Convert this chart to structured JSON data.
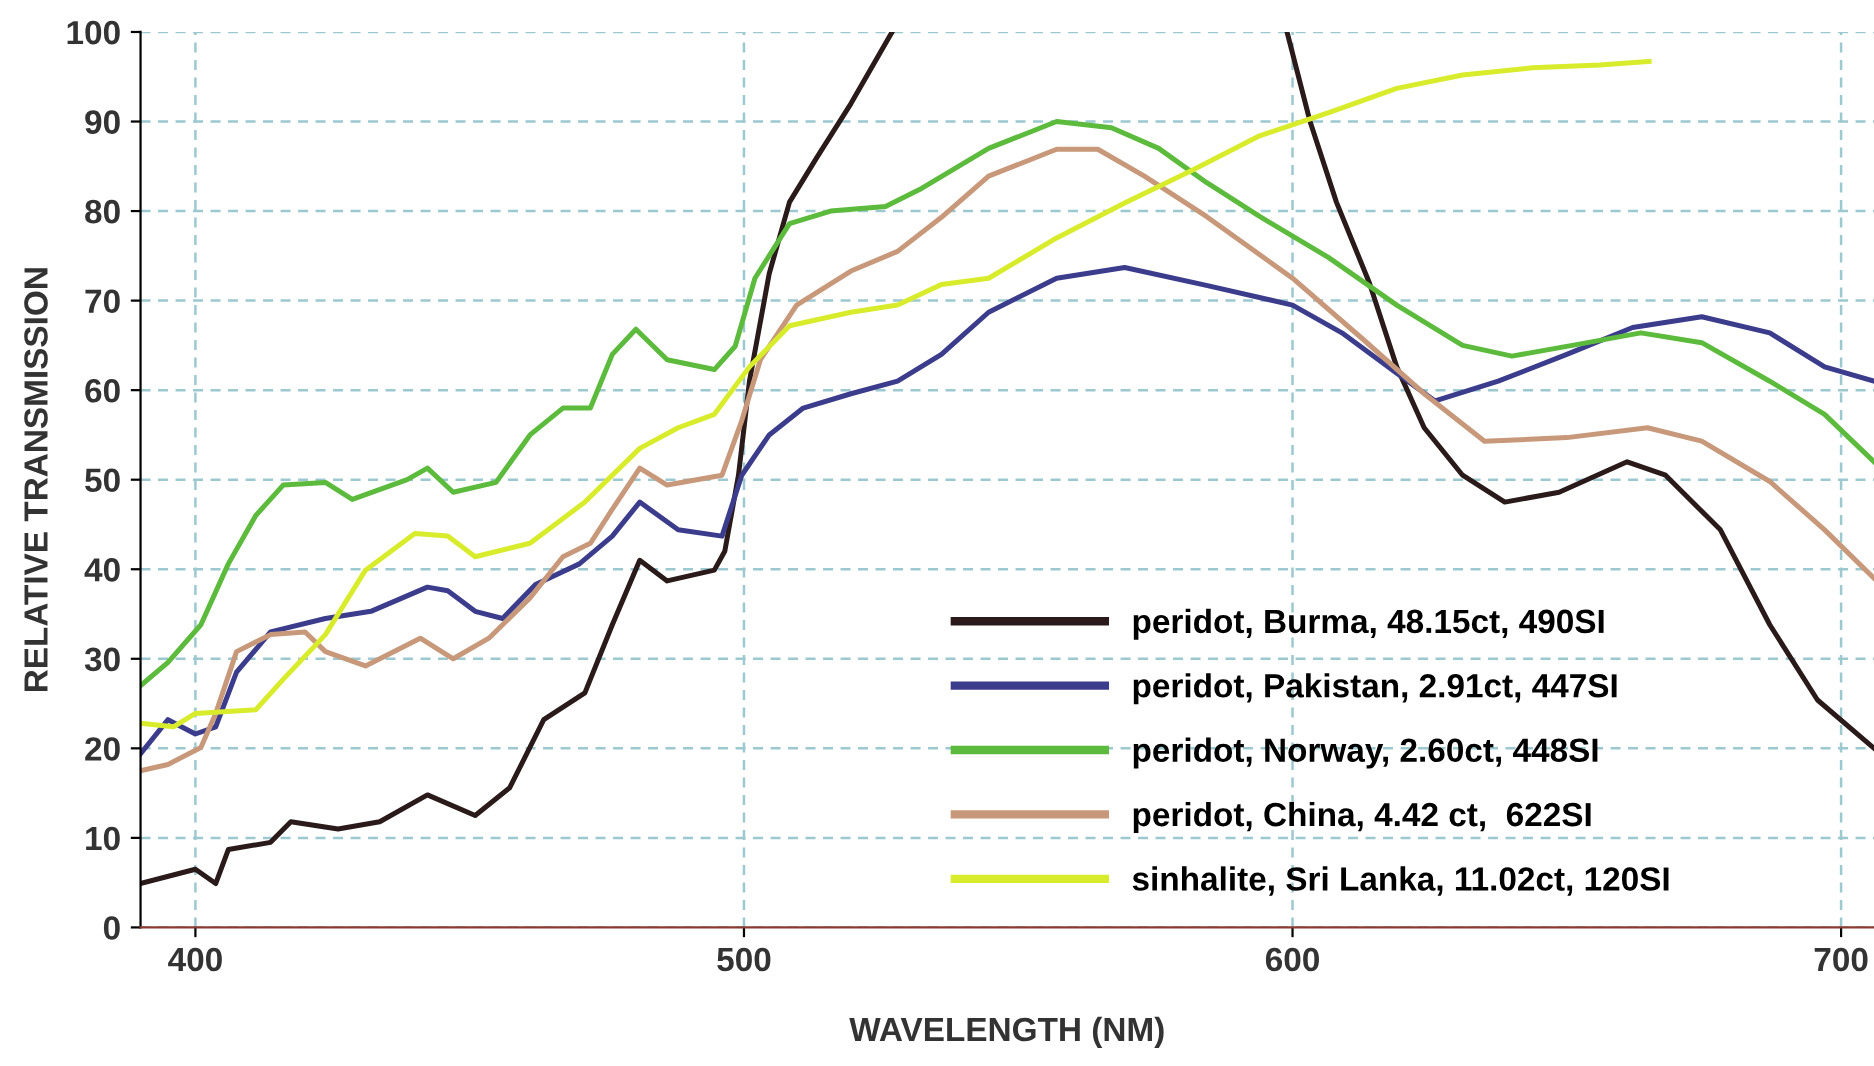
{
  "chart_data": {
    "type": "line",
    "xlabel": "WAVELENGTH (NM)",
    "ylabel": "RELATIVE TRANSMISSION",
    "xlim": [
      390,
      706
    ],
    "ylim": [
      0,
      100
    ],
    "xticks": [
      400,
      500,
      600,
      700
    ],
    "yticks": [
      0,
      10,
      20,
      30,
      40,
      50,
      60,
      70,
      80,
      90,
      100
    ],
    "grid": true,
    "legend": "bottom right",
    "line_style": "solid",
    "marker": "none",
    "series": [
      {
        "name": "peridot, Burma, 48.15ct, 490SI",
        "color": "#2a1a1a",
        "x": [
          390,
          400,
          403.7,
          406,
          413.7,
          417.4,
          426,
          433.6,
          442.3,
          451,
          457.3,
          463.5,
          471,
          476,
          481,
          486,
          494.6,
          496.5,
          499,
          501,
          504.6,
          508.3,
          513.3,
          519.5,
          527,
          563,
          599,
          603.2,
          608,
          614,
          619,
          624,
          631,
          638.7,
          648.6,
          661,
          668,
          678,
          687,
          695.7,
          706
        ],
        "values": [
          4.9,
          6.5,
          4.9,
          8.7,
          9.5,
          11.8,
          11,
          11.8,
          14.8,
          12.5,
          15.6,
          23.2,
          26.2,
          33.8,
          41,
          38.7,
          39.9,
          42,
          50.5,
          61,
          73,
          81,
          86,
          92,
          100,
          null,
          100,
          90,
          81,
          72,
          62.6,
          55.8,
          50.5,
          47.5,
          48.6,
          52,
          50.5,
          44.4,
          33.8,
          25.4,
          20
        ]
      },
      {
        "name": "peridot, Pakistan, 2.91ct, 447SI",
        "color": "#3c3c8c",
        "x": [
          390,
          395,
          400,
          403.7,
          407.5,
          413.7,
          423.7,
          432,
          442.3,
          446,
          451,
          456,
          462,
          470,
          476,
          481,
          488,
          496,
          499.6,
          504.6,
          510.8,
          519.5,
          528,
          536,
          544.6,
          557,
          569.4,
          584.3,
          600,
          609,
          619,
          626,
          637.5,
          650,
          662,
          674.6,
          687,
          697,
          706
        ],
        "values": [
          19.4,
          23.2,
          21.6,
          22.4,
          28.5,
          33,
          34.5,
          35.3,
          38,
          37.6,
          35.3,
          34.5,
          38.3,
          40.6,
          43.7,
          47.5,
          44.4,
          43.7,
          50.5,
          55,
          58,
          59.6,
          61,
          64,
          68.7,
          72.5,
          73.7,
          71.7,
          69.5,
          66.4,
          61.9,
          58.8,
          61,
          64,
          67,
          68.2,
          66.4,
          62.6,
          61
        ]
      },
      {
        "name": "peridot, Norway, 2.60ct, 448SI",
        "color": "#5cbb3c",
        "x": [
          390,
          395,
          401,
          406,
          411,
          416,
          423.7,
          428.6,
          438.6,
          442.3,
          447,
          454.8,
          461,
          467,
          472,
          476,
          480.3,
          486,
          494.6,
          498.4,
          502,
          508.3,
          515.8,
          525.8,
          532,
          544.6,
          557,
          567,
          575.6,
          584.3,
          594,
          606.6,
          619,
          631,
          640,
          651,
          663.5,
          674.6,
          687,
          697,
          706
        ],
        "values": [
          27,
          29.6,
          33.8,
          40.6,
          46,
          49.4,
          49.7,
          47.8,
          50,
          51.3,
          48.6,
          49.7,
          55,
          58,
          58,
          64,
          66.8,
          63.4,
          62.3,
          64.9,
          72.5,
          78.6,
          80,
          80.5,
          82.4,
          87,
          90,
          89.3,
          87,
          83.2,
          79.4,
          74.8,
          69.5,
          65,
          63.8,
          65,
          66.4,
          65.3,
          61,
          57.3,
          52
        ]
      },
      {
        "name": "peridot, China, 4.42 ct,  622SI",
        "color": "#c8987a",
        "x": [
          390,
          395,
          401,
          403.7,
          407.5,
          413.7,
          420,
          423.7,
          431,
          441,
          447,
          453.5,
          461,
          467,
          472,
          476,
          481,
          486,
          496,
          499.6,
          503,
          509.6,
          519.5,
          528,
          536,
          544.6,
          557,
          564.5,
          573,
          584.3,
          600,
          613,
          624,
          635,
          650,
          664.7,
          674.6,
          687,
          697,
          706
        ],
        "values": [
          17.5,
          18.2,
          20.1,
          23.9,
          30.8,
          32.7,
          33,
          30.8,
          29.2,
          32.3,
          30,
          32.3,
          36.8,
          41.4,
          42.9,
          46.7,
          51.3,
          49.4,
          50.5,
          56.6,
          63.4,
          69.5,
          73.3,
          75.5,
          79.3,
          83.9,
          86.9,
          86.9,
          83.9,
          79.4,
          72.5,
          65.6,
          59.6,
          54.3,
          54.7,
          55.8,
          54.3,
          49.8,
          44.4,
          39
        ]
      },
      {
        "name": "sinhalite, Sri Lanka, 11.02ct, 120SI",
        "color": "#d8ec2c",
        "x": [
          390,
          396,
          400,
          411,
          416,
          423.7,
          431,
          440,
          446,
          451,
          461,
          471,
          481,
          488,
          494.6,
          501,
          508.3,
          519.5,
          528,
          536,
          544.6,
          557,
          569.4,
          581.8,
          594,
          606.6,
          619,
          631,
          643.7,
          656,
          665
        ],
        "values": [
          22.8,
          22.4,
          23.9,
          24.3,
          27.7,
          32.7,
          39.9,
          44,
          43.7,
          41.4,
          42.9,
          47.5,
          53.5,
          55.8,
          57.3,
          62.6,
          67.2,
          68.7,
          69.5,
          71.8,
          72.5,
          77,
          80.9,
          84.6,
          88.4,
          91,
          93.7,
          95.2,
          96,
          96.3,
          96.7
        ]
      }
    ]
  }
}
